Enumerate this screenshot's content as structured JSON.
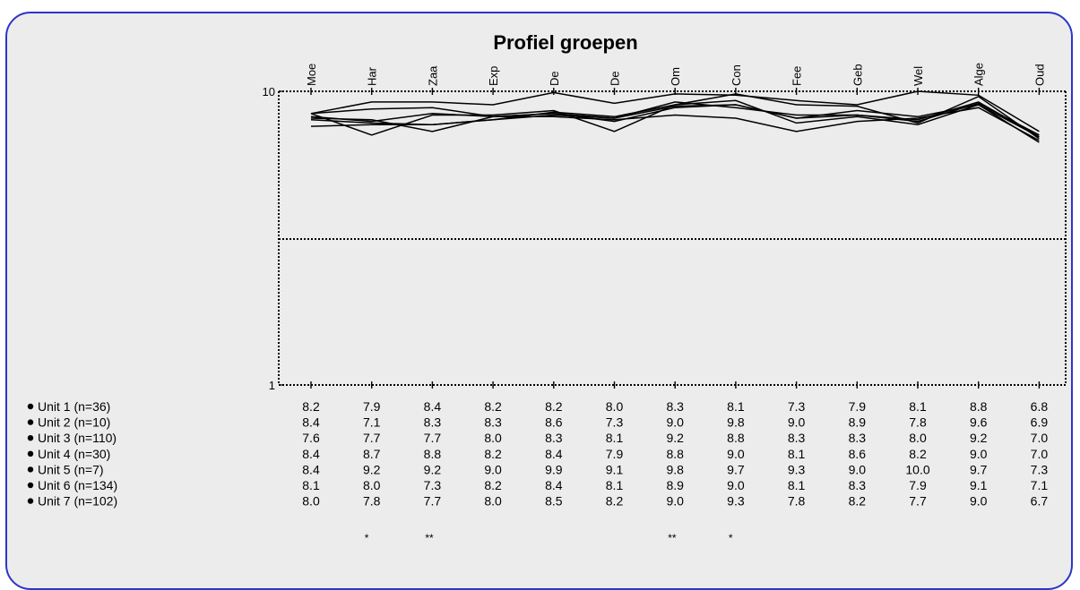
{
  "chart_data": {
    "type": "line",
    "title": "Profiel groepen",
    "categories": [
      "Moe",
      "Har",
      "Zaa",
      "Exp",
      "De",
      "De",
      "Om",
      "Con",
      "Fee",
      "Geb",
      "Wel",
      "Alge",
      "Oud"
    ],
    "y_axis": {
      "scale": "log",
      "ylim": [
        1,
        10
      ],
      "tick_labels": [
        "1",
        "10"
      ]
    },
    "series": [
      {
        "name": "Unit 1 (n=36)",
        "values": [
          8.2,
          7.9,
          8.4,
          8.2,
          8.2,
          8.0,
          8.3,
          8.1,
          7.3,
          7.9,
          8.1,
          8.8,
          6.8
        ]
      },
      {
        "name": "Unit 2 (n=10)",
        "values": [
          8.4,
          7.1,
          8.3,
          8.3,
          8.6,
          7.3,
          9.0,
          9.8,
          9.0,
          8.9,
          7.8,
          9.6,
          6.9
        ]
      },
      {
        "name": "Unit 3 (n=110)",
        "values": [
          7.6,
          7.7,
          7.7,
          8.0,
          8.3,
          8.1,
          9.2,
          8.8,
          8.3,
          8.3,
          8.0,
          9.2,
          7.0
        ]
      },
      {
        "name": "Unit 4 (n=30)",
        "values": [
          8.4,
          8.7,
          8.8,
          8.2,
          8.4,
          7.9,
          8.8,
          9.0,
          8.1,
          8.6,
          8.2,
          9.0,
          7.0
        ]
      },
      {
        "name": "Unit 5 (n=7)",
        "values": [
          8.4,
          9.2,
          9.2,
          9.0,
          9.9,
          9.1,
          9.8,
          9.7,
          9.3,
          9.0,
          10.0,
          9.7,
          7.3
        ]
      },
      {
        "name": "Unit 6 (n=134)",
        "values": [
          8.1,
          8.0,
          7.3,
          8.2,
          8.4,
          8.1,
          8.9,
          9.0,
          8.1,
          8.3,
          7.9,
          9.1,
          7.1
        ]
      },
      {
        "name": "Unit 7 (n=102)",
        "values": [
          8.0,
          7.8,
          7.7,
          8.0,
          8.5,
          8.2,
          9.0,
          9.3,
          7.8,
          8.2,
          7.7,
          9.0,
          6.7
        ]
      }
    ],
    "table_display": [
      [
        "8.2",
        "7.9",
        "8.4",
        "8.2",
        "8.2",
        "8.0",
        "8.3",
        "8.1",
        "7.3",
        "7.9",
        "8.1",
        "8.8",
        "6.8"
      ],
      [
        "8.4",
        "7.1",
        "8.3",
        "8.3",
        "8.6",
        "7.3",
        "9.0",
        "9.8",
        "9.0",
        "8.9",
        "7.8",
        "9.6",
        "6.9"
      ],
      [
        "7.6",
        "7.7",
        "7.7",
        "8.0",
        "8.3",
        "8.1",
        "9.2",
        "8.8",
        "8.3",
        "8.3",
        "8.0",
        "9.2",
        "7.0"
      ],
      [
        "8.4",
        "8.7",
        "8.8",
        "8.2",
        "8.4",
        "7.9",
        "8.8",
        "9.0",
        "8.1",
        "8.6",
        "8.2",
        "9.0",
        "7.0"
      ],
      [
        "8.4",
        "9.2",
        "9.2",
        "9.0",
        "9.9",
        "9.1",
        "9.8",
        "9.7",
        "9.3",
        "9.0",
        "10.0",
        "9.7",
        "7.3"
      ],
      [
        "8.1",
        "8.0",
        "7.3",
        "8.2",
        "8.4",
        "8.1",
        "8.9",
        "9.0",
        "8.1",
        "8.3",
        "7.9",
        "9.1",
        "7.1"
      ],
      [
        "8.0",
        "7.8",
        "7.7",
        "8.0",
        "8.5",
        "8.2",
        "9.0",
        "9.3",
        "7.8",
        "8.2",
        "7.7",
        "9.0",
        "6.7"
      ]
    ],
    "significance": [
      "",
      "*",
      "**",
      "",
      "",
      "",
      "**",
      "*",
      "",
      "",
      "",
      "",
      ""
    ],
    "grid": false,
    "legend_placement": "bottom-left",
    "colors": {
      "line": "#000000",
      "frame": "#000000",
      "panel_border": "#2b36c8",
      "panel_bg": "#ececec"
    }
  }
}
